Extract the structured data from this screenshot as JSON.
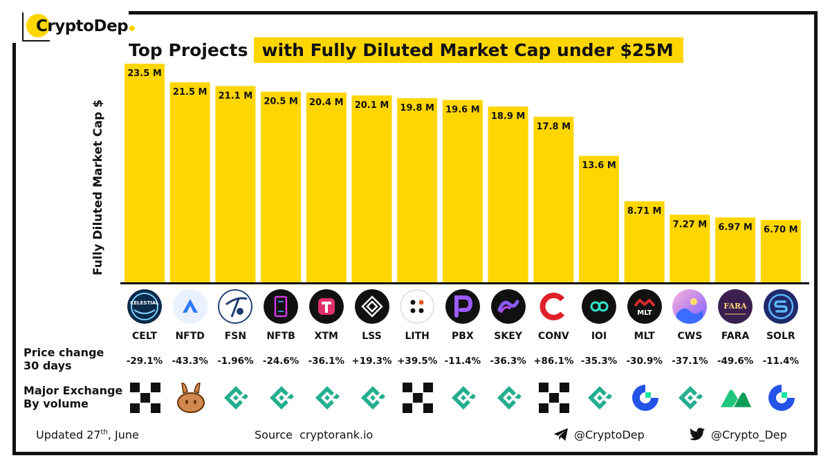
{
  "brand": {
    "name": "CryptoDep",
    "accent": "#FFD600"
  },
  "title": {
    "plain": "Top Projects",
    "highlight": "with Fully Diluted Market Cap under $25M"
  },
  "chart_data": {
    "type": "bar",
    "ylabel": "Fully Diluted Market Cap $",
    "unit": "M",
    "ylim": [
      0,
      25
    ],
    "bar_color": "#FFD600",
    "categories": [
      "CELT",
      "NFTD",
      "FSN",
      "NFTB",
      "XTM",
      "LSS",
      "LITH",
      "PBX",
      "SKEY",
      "CONV",
      "IOI",
      "MLT",
      "CWS",
      "FARA",
      "SOLR"
    ],
    "values": [
      23.5,
      21.5,
      21.1,
      20.5,
      20.4,
      20.1,
      19.8,
      19.6,
      18.9,
      17.8,
      13.6,
      8.71,
      7.27,
      6.97,
      6.7
    ],
    "value_labels": [
      "23.5 M",
      "21.5 M",
      "21.1 M",
      "20.5 M",
      "20.4 M",
      "20.1 M",
      "19.8 M",
      "19.6 M",
      "18.9 M",
      "17.8 M",
      "13.6 M",
      "8.71 M",
      "7.27 M",
      "6.97 M",
      "6.70 M"
    ]
  },
  "rows": {
    "price_change_label_1": "Price change",
    "price_change_label_2": "30 days",
    "exchange_label_1": "Major Exchange",
    "exchange_label_2": "By volume"
  },
  "price_change": [
    "-29.1%",
    "-43.3%",
    "-1.96%",
    "-24.6%",
    "-36.1%",
    "+19.3%",
    "+39.5%",
    "-11.4%",
    "-36.3%",
    "+86.1%",
    "-35.3%",
    "-30.9%",
    "-37.1%",
    "-49.6%",
    "-11.4%"
  ],
  "project_icons": [
    "celestial-icon",
    "nftd-icon",
    "fsn-icon",
    "nftb-icon",
    "xtm-icon",
    "lss-icon",
    "lith-icon",
    "pbx-icon",
    "skey-icon",
    "conv-icon",
    "ioi-icon",
    "mlt-icon",
    "cws-icon",
    "fara-icon",
    "solr-icon"
  ],
  "exchanges": [
    "okx",
    "pancakeswap",
    "kucoin",
    "kucoin",
    "kucoin",
    "kucoin",
    "okx",
    "kucoin",
    "kucoin",
    "okx",
    "kucoin",
    "gateio",
    "kucoin",
    "mexc",
    "gateio"
  ],
  "logo_texts": {
    "celt": "CELESTIAL",
    "mlt": "MLT",
    "fara": "FARA"
  },
  "footer": {
    "updated_prefix": "Updated 27",
    "updated_sup": "th",
    "updated_suffix": ", June",
    "source_prefix": "Source",
    "source_site": "cryptorank.io",
    "telegram": "@CryptoDep",
    "twitter": "@Crypto_Dep"
  }
}
